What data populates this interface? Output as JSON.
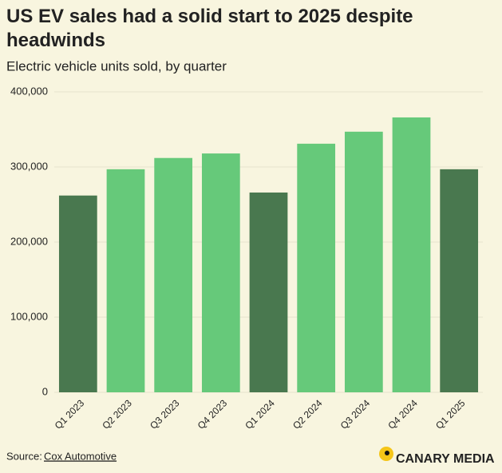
{
  "chart_data": {
    "type": "bar",
    "title": "US EV sales had a solid start to 2025 despite headwinds",
    "subtitle": "Electric vehicle units sold, by quarter",
    "categories": [
      "Q1 2023",
      "Q2 2023",
      "Q3 2023",
      "Q4 2023",
      "Q1 2024",
      "Q2 2024",
      "Q3 2024",
      "Q4 2024",
      "Q1 2025"
    ],
    "values": [
      262000,
      297000,
      312000,
      318000,
      266000,
      331000,
      347000,
      366000,
      297000
    ],
    "colors": [
      "#49784f",
      "#66c97a",
      "#66c97a",
      "#66c97a",
      "#49784f",
      "#66c97a",
      "#66c97a",
      "#66c97a",
      "#49784f"
    ],
    "ylim": [
      0,
      400000
    ],
    "yticks": [
      0,
      {
        "value": 100000,
        "label": "100,000"
      },
      {
        "value": 200000,
        "label": "200,000"
      },
      {
        "value": 300000,
        "label": "300,000"
      },
      {
        "value": 400000,
        "label": "400,000"
      }
    ],
    "grid": true,
    "source_label": "Source:",
    "source": "Cox Automotive",
    "brand": "CANARY MEDIA"
  }
}
